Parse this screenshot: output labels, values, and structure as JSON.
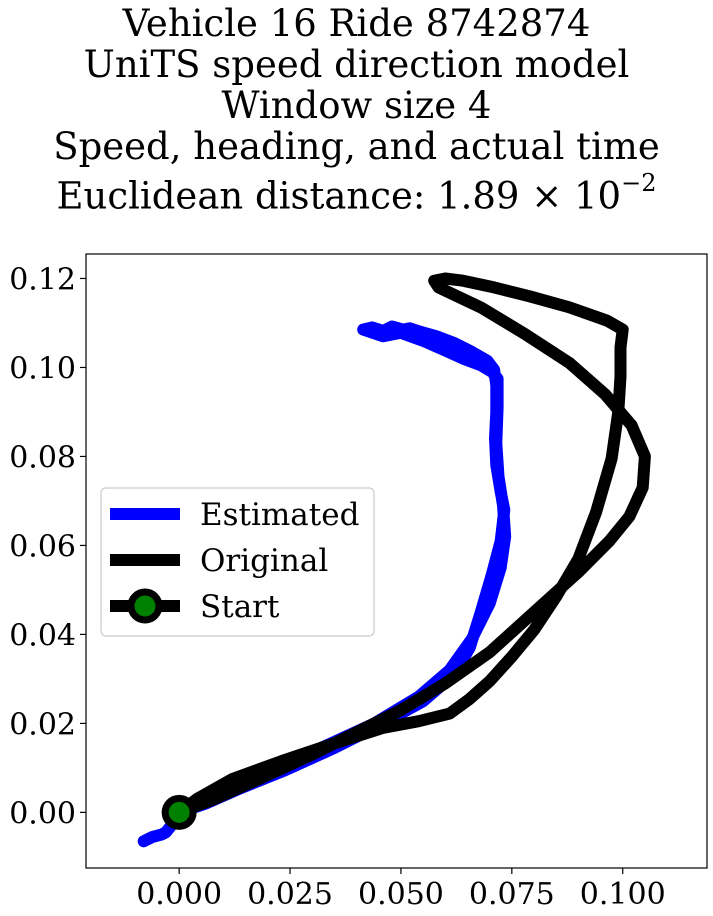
{
  "chart_data": {
    "type": "line",
    "title_lines": [
      "Vehicle 16 Ride 8742874",
      "UniTS speed direction model",
      "Window size 4",
      "Speed, heading, and actual time"
    ],
    "distance_label": "Euclidean distance: ",
    "distance_mantissa": "1.89",
    "distance_times": " × 10",
    "distance_exponent": "−2",
    "xlim": [
      -0.021,
      0.119
    ],
    "ylim": [
      -0.0125,
      0.1255
    ],
    "xticks": [
      {
        "value": 0.0,
        "label": "0.000"
      },
      {
        "value": 0.025,
        "label": "0.025"
      },
      {
        "value": 0.05,
        "label": "0.050"
      },
      {
        "value": 0.075,
        "label": "0.075"
      },
      {
        "value": 0.1,
        "label": "0.100"
      }
    ],
    "yticks": [
      {
        "value": 0.0,
        "label": "0.00"
      },
      {
        "value": 0.02,
        "label": "0.02"
      },
      {
        "value": 0.04,
        "label": "0.04"
      },
      {
        "value": 0.06,
        "label": "0.06"
      },
      {
        "value": 0.08,
        "label": "0.08"
      },
      {
        "value": 0.1,
        "label": "0.10"
      },
      {
        "value": 0.12,
        "label": "0.12"
      }
    ],
    "legend": {
      "position": "center-left",
      "entries": [
        {
          "label": "Estimated",
          "color": "#0000ff",
          "marker": false
        },
        {
          "label": "Original",
          "color": "#000000",
          "marker": false
        },
        {
          "label": "Start",
          "color": "#000000",
          "marker": true,
          "marker_fill": "#008000"
        }
      ]
    },
    "series": [
      {
        "name": "Estimated",
        "color": "#0000ff",
        "x": [
          -0.008,
          -0.006,
          -0.004,
          -0.003,
          -0.001,
          0.0,
          0.008,
          0.02,
          0.032,
          0.044,
          0.054,
          0.061,
          0.066,
          0.07,
          0.0725,
          0.0735,
          0.073,
          0.072,
          0.0715,
          0.0718,
          0.0718,
          0.0705,
          0.068,
          0.064,
          0.06,
          0.055,
          0.05,
          0.046,
          0.0415,
          0.0435,
          0.046,
          0.048,
          0.0505,
          0.052,
          0.0545,
          0.058,
          0.062,
          0.066,
          0.0695,
          0.071,
          0.0715,
          0.0715,
          0.0712,
          0.0715,
          0.0725,
          0.0733,
          0.0725,
          0.0705,
          0.068,
          0.0655,
          0.062,
          0.055,
          0.045,
          0.035,
          0.024,
          0.014,
          0.006,
          0.0
        ],
        "y": [
          -0.0065,
          -0.0055,
          -0.005,
          -0.0045,
          -0.002,
          0.0,
          0.004,
          0.009,
          0.0145,
          0.02,
          0.026,
          0.032,
          0.039,
          0.047,
          0.055,
          0.062,
          0.069,
          0.0755,
          0.083,
          0.091,
          0.0975,
          0.099,
          0.1005,
          0.102,
          0.1038,
          0.106,
          0.1078,
          0.107,
          0.1085,
          0.109,
          0.1082,
          0.1092,
          0.1085,
          0.1088,
          0.108,
          0.107,
          0.1055,
          0.1035,
          0.1015,
          0.0995,
          0.096,
          0.09,
          0.084,
          0.078,
          0.072,
          0.068,
          0.061,
          0.0535,
          0.045,
          0.037,
          0.031,
          0.025,
          0.0195,
          0.0145,
          0.0095,
          0.0055,
          0.002,
          0.0
        ]
      },
      {
        "name": "Original",
        "color": "#000000",
        "x": [
          0.0,
          0.008,
          0.018,
          0.03,
          0.04,
          0.05,
          0.06,
          0.07,
          0.08,
          0.09,
          0.097,
          0.1015,
          0.1045,
          0.105,
          0.102,
          0.096,
          0.088,
          0.078,
          0.068,
          0.0585,
          0.0575,
          0.06,
          0.064,
          0.071,
          0.079,
          0.088,
          0.0965,
          0.1,
          0.0995,
          0.0995,
          0.099,
          0.0975,
          0.094,
          0.09,
          0.085,
          0.08,
          0.075,
          0.07,
          0.0655,
          0.061,
          0.054,
          0.046,
          0.035,
          0.023,
          0.012,
          0.004,
          0.0
        ],
        "y": [
          0.0,
          0.003,
          0.0075,
          0.013,
          0.018,
          0.023,
          0.029,
          0.036,
          0.045,
          0.054,
          0.061,
          0.0665,
          0.073,
          0.08,
          0.087,
          0.094,
          0.101,
          0.1075,
          0.1135,
          0.118,
          0.1195,
          0.12,
          0.1195,
          0.118,
          0.116,
          0.1135,
          0.1105,
          0.1085,
          0.1045,
          0.098,
          0.09,
          0.0795,
          0.0675,
          0.057,
          0.0485,
          0.041,
          0.035,
          0.0295,
          0.0255,
          0.0222,
          0.0205,
          0.019,
          0.0155,
          0.0115,
          0.0075,
          0.003,
          0.0
        ]
      }
    ],
    "start_point": {
      "x": 0.0,
      "y": 0.0
    }
  }
}
